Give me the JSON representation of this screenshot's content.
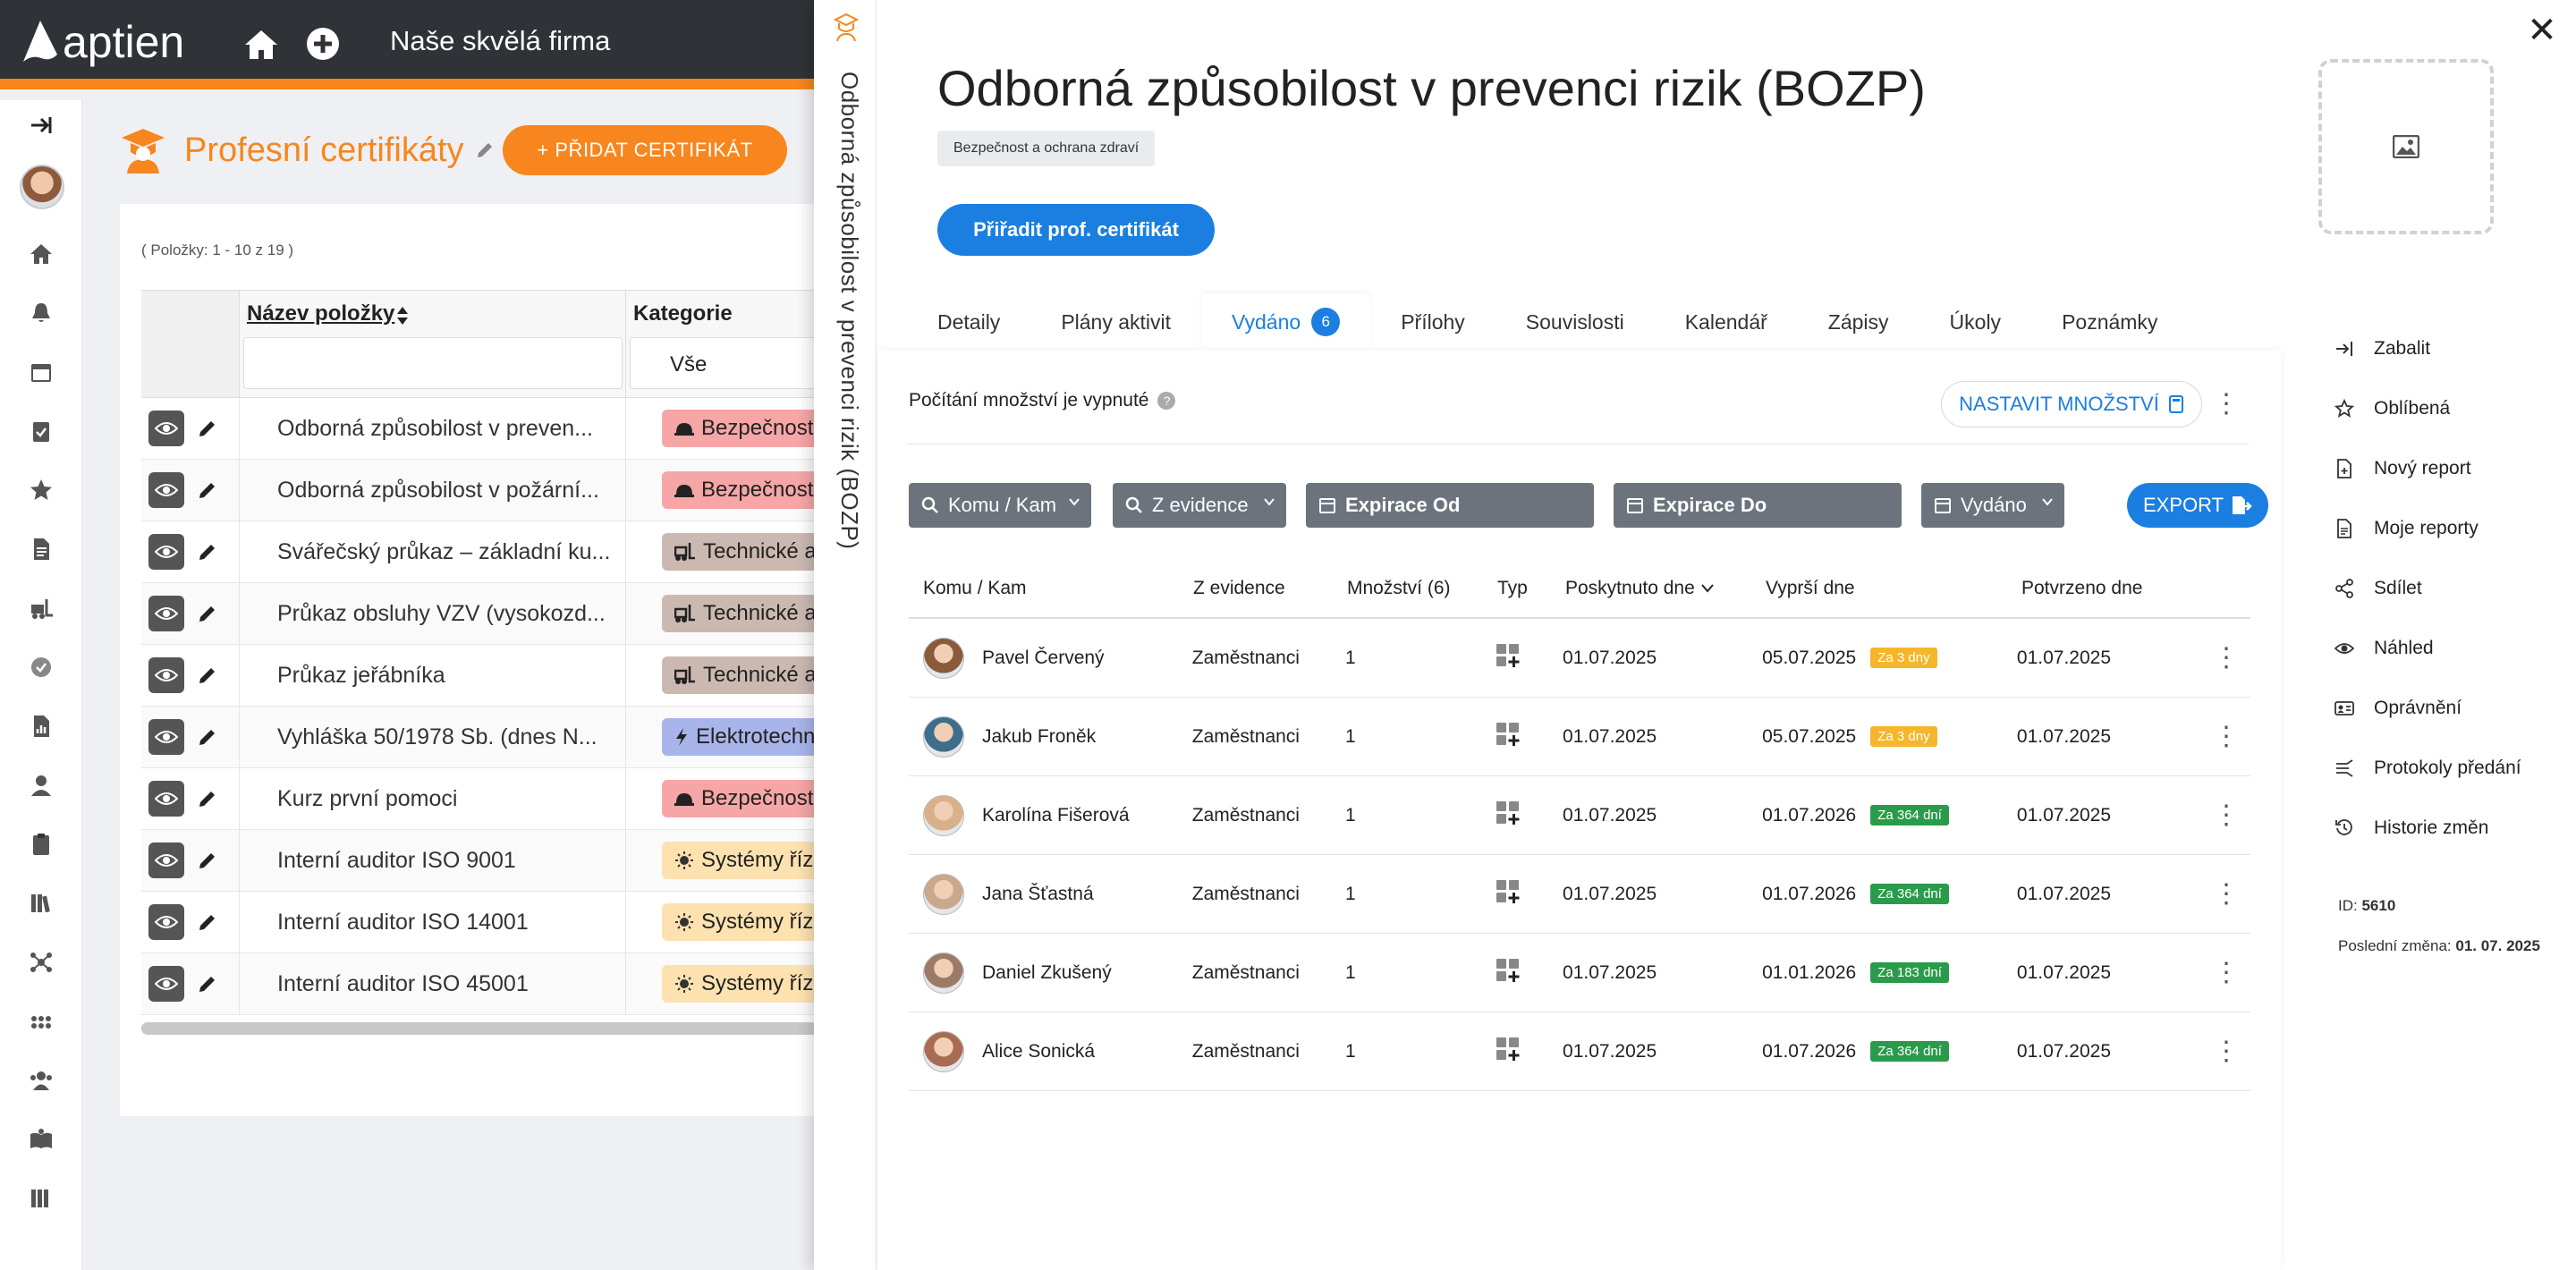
{
  "app": {
    "logo_text": "aptien",
    "company": "Naše skvělá firma",
    "brand_color": "#f7861e",
    "accent_color": "#1a7fe0"
  },
  "list_page": {
    "title": "Profesní certifikáty",
    "add_button": "+ PŘIDAT CERTIFIKÁT",
    "items_count": "( Položky: 1 - 10 z 19 )",
    "columns": {
      "name": "Název položky",
      "category": "Kategorie"
    },
    "category_filter": "Vše",
    "rows": [
      {
        "name": "Odborná způsobilost v preven...",
        "category": "Bezpečnost",
        "icon": "hard-hat-icon",
        "color": "#f6a6a6"
      },
      {
        "name": "Odborná způsobilost v požární...",
        "category": "Bezpečnost",
        "icon": "hard-hat-icon",
        "color": "#f6a6a6"
      },
      {
        "name": "Svářečský průkaz – základní ku...",
        "category": "Technické a",
        "icon": "forklift-icon",
        "color": "#cbb9b1"
      },
      {
        "name": "Průkaz obsluhy VZV (vysokozd...",
        "category": "Technické a",
        "icon": "forklift-icon",
        "color": "#cbb9b1"
      },
      {
        "name": "Průkaz jeřábníka",
        "category": "Technické a",
        "icon": "forklift-icon",
        "color": "#cbb9b1"
      },
      {
        "name": "Vyhláška 50/1978 Sb. (dnes N...",
        "category": "Elektrotechn",
        "icon": "bolt-icon",
        "color": "#a9b4ea"
      },
      {
        "name": "Kurz první pomoci",
        "category": "Bezpečnost",
        "icon": "hard-hat-icon",
        "color": "#f6a6a6"
      },
      {
        "name": "Interní auditor ISO 9001",
        "category": "Systémy říz",
        "icon": "sun-icon",
        "color": "#fde2b0"
      },
      {
        "name": "Interní auditor ISO 14001",
        "category": "Systémy říz",
        "icon": "sun-icon",
        "color": "#fde2b0"
      },
      {
        "name": "Interní auditor ISO 45001",
        "category": "Systémy říz",
        "icon": "sun-icon",
        "color": "#fde2b0"
      }
    ]
  },
  "detail": {
    "vertical_title": "Odborná způsobilost v prevenci rizik (BOZP)",
    "title": "Odborná způsobilost v prevenci rizik (BOZP)",
    "tag": "Bezpečnost a ochrana zdraví",
    "assign_button": "Přiřadit prof. certifikát",
    "tabs": [
      {
        "label": "Detaily"
      },
      {
        "label": "Plány aktivit"
      },
      {
        "label": "Vydáno",
        "count": "6",
        "active": true
      },
      {
        "label": "Přílohy"
      },
      {
        "label": "Souvislosti"
      },
      {
        "label": "Kalendář"
      },
      {
        "label": "Zápisy"
      },
      {
        "label": "Úkoly"
      },
      {
        "label": "Poznámky"
      }
    ],
    "quantity_note": "Počítání množství je vypnuté",
    "set_quantity_button": "NASTAVIT MNOŽSTVÍ",
    "filters": {
      "who": "Komu / Kam",
      "from_register": "Z evidence",
      "expiry_from": "Expirace Od",
      "expiry_to": "Expirace Do",
      "issued": "Vydáno"
    },
    "export_button": "EXPORT",
    "columns": [
      "Komu / Kam",
      "Z evidence",
      "Množství (6)",
      "Typ",
      "Poskytnuto dne",
      "Vyprší dne",
      "Potvrzeno dne"
    ],
    "rows": [
      {
        "who": "Pavel Červený",
        "source": "Zaměstnanci",
        "qty": "1",
        "given": "01.07.2025",
        "expires": "05.07.2025",
        "due": "Za 3 dny",
        "due_status": "warn",
        "confirmed": "01.07.2025",
        "avatar": "#8a5a3a"
      },
      {
        "who": "Jakub Froněk",
        "source": "Zaměstnanci",
        "qty": "1",
        "given": "01.07.2025",
        "expires": "05.07.2025",
        "due": "Za 3 dny",
        "due_status": "warn",
        "confirmed": "01.07.2025",
        "avatar": "#3d6e8c"
      },
      {
        "who": "Karolína Fišerová",
        "source": "Zaměstnanci",
        "qty": "1",
        "given": "01.07.2025",
        "expires": "01.07.2026",
        "due": "Za 364 dní",
        "due_status": "ok",
        "confirmed": "01.07.2025",
        "avatar": "#d8b08a"
      },
      {
        "who": "Jana Šťastná",
        "source": "Zaměstnanci",
        "qty": "1",
        "given": "01.07.2025",
        "expires": "01.07.2026",
        "due": "Za 364 dní",
        "due_status": "ok",
        "confirmed": "01.07.2025",
        "avatar": "#c9a98d"
      },
      {
        "who": "Daniel Zkušený",
        "source": "Zaměstnanci",
        "qty": "1",
        "given": "01.07.2025",
        "expires": "01.01.2026",
        "due": "Za 183 dní",
        "due_status": "ok",
        "confirmed": "01.07.2025",
        "avatar": "#9b7b66"
      },
      {
        "who": "Alice Sonická",
        "source": "Zaměstnanci",
        "qty": "1",
        "given": "01.07.2025",
        "expires": "01.07.2026",
        "due": "Za 364 dní",
        "due_status": "ok",
        "confirmed": "01.07.2025",
        "avatar": "#a86b54"
      }
    ],
    "actions": [
      {
        "label": "Zabalit",
        "icon": "collapse-icon"
      },
      {
        "label": "Oblíbená",
        "icon": "star-icon"
      },
      {
        "label": "Nový report",
        "icon": "new-report-icon"
      },
      {
        "label": "Moje reporty",
        "icon": "reports-icon"
      },
      {
        "label": "Sdílet",
        "icon": "share-icon"
      },
      {
        "label": "Náhled",
        "icon": "eye-icon"
      },
      {
        "label": "Oprávnění",
        "icon": "permissions-icon"
      },
      {
        "label": "Protokoly předání",
        "icon": "handover-icon"
      },
      {
        "label": "Historie změn",
        "icon": "history-icon"
      }
    ],
    "meta": {
      "id_label": "ID:",
      "id": "5610",
      "changed_label": "Poslední změna:",
      "changed": "01. 07. 2025"
    }
  }
}
